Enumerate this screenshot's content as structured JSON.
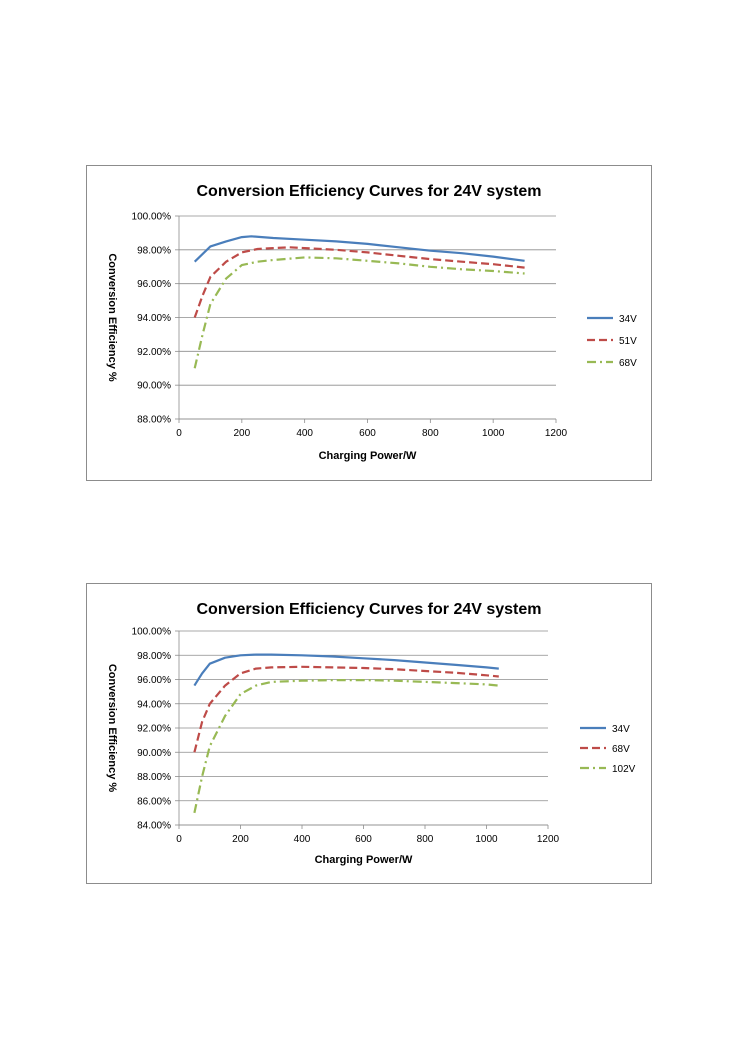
{
  "charts": [
    {
      "type": "line",
      "title": "Conversion Efficiency Curves for 24V system",
      "xlabel": "Charging Power/W",
      "ylabel": "Conversion Efficiency %",
      "xlim": [
        0,
        1200
      ],
      "ylim": [
        88,
        100
      ],
      "x_ticks": [
        "0",
        "200",
        "400",
        "600",
        "800",
        "1000",
        "1200"
      ],
      "y_ticks": [
        "88.00%",
        "90.00%",
        "92.00%",
        "94.00%",
        "96.00%",
        "98.00%",
        "100.00%"
      ],
      "grid": true,
      "legend_position": "right",
      "series": [
        {
          "name": "34V",
          "color": "#4a7ebb",
          "dash": "solid",
          "points": [
            [
              50,
              97.3
            ],
            [
              100,
              98.2
            ],
            [
              150,
              98.5
            ],
            [
              200,
              98.75
            ],
            [
              230,
              98.8
            ],
            [
              300,
              98.7
            ],
            [
              400,
              98.6
            ],
            [
              500,
              98.5
            ],
            [
              600,
              98.35
            ],
            [
              700,
              98.15
            ],
            [
              800,
              97.95
            ],
            [
              900,
              97.8
            ],
            [
              1000,
              97.6
            ],
            [
              1100,
              97.35
            ]
          ]
        },
        {
          "name": "51V",
          "color": "#be4b48",
          "dash": "dashed",
          "points": [
            [
              50,
              94.0
            ],
            [
              75,
              95.3
            ],
            [
              100,
              96.4
            ],
            [
              150,
              97.3
            ],
            [
              200,
              97.85
            ],
            [
              250,
              98.05
            ],
            [
              300,
              98.1
            ],
            [
              350,
              98.15
            ],
            [
              400,
              98.1
            ],
            [
              500,
              98.0
            ],
            [
              600,
              97.85
            ],
            [
              700,
              97.65
            ],
            [
              800,
              97.45
            ],
            [
              900,
              97.3
            ],
            [
              1000,
              97.15
            ],
            [
              1100,
              96.95
            ]
          ]
        },
        {
          "name": "68V",
          "color": "#98b954",
          "dash": "dashdot",
          "points": [
            [
              50,
              91.0
            ],
            [
              75,
              93.0
            ],
            [
              100,
              94.8
            ],
            [
              150,
              96.3
            ],
            [
              200,
              97.1
            ],
            [
              250,
              97.3
            ],
            [
              300,
              97.4
            ],
            [
              400,
              97.55
            ],
            [
              500,
              97.5
            ],
            [
              600,
              97.35
            ],
            [
              700,
              97.2
            ],
            [
              800,
              97.0
            ],
            [
              900,
              96.85
            ],
            [
              1000,
              96.75
            ],
            [
              1100,
              96.6
            ]
          ]
        }
      ]
    },
    {
      "type": "line",
      "title": "Conversion Efficiency Curves for 24V system",
      "xlabel": "Charging Power/W",
      "ylabel": "Conversion Efficiency %",
      "xlim": [
        0,
        1200
      ],
      "ylim": [
        84,
        100
      ],
      "x_ticks": [
        "0",
        "200",
        "400",
        "600",
        "800",
        "1000",
        "1200"
      ],
      "y_ticks": [
        "84.00%",
        "86.00%",
        "88.00%",
        "90.00%",
        "92.00%",
        "94.00%",
        "96.00%",
        "98.00%",
        "100.00%"
      ],
      "grid": true,
      "legend_position": "right",
      "series": [
        {
          "name": "34V",
          "color": "#4a7ebb",
          "dash": "solid",
          "points": [
            [
              50,
              95.5
            ],
            [
              75,
              96.5
            ],
            [
              100,
              97.3
            ],
            [
              150,
              97.8
            ],
            [
              200,
              98.0
            ],
            [
              250,
              98.05
            ],
            [
              300,
              98.05
            ],
            [
              400,
              98.0
            ],
            [
              500,
              97.9
            ],
            [
              600,
              97.75
            ],
            [
              700,
              97.6
            ],
            [
              800,
              97.4
            ],
            [
              900,
              97.2
            ],
            [
              1000,
              97.0
            ],
            [
              1040,
              96.9
            ]
          ]
        },
        {
          "name": "68V",
          "color": "#be4b48",
          "dash": "dashed",
          "points": [
            [
              50,
              90.0
            ],
            [
              75,
              92.5
            ],
            [
              100,
              94.0
            ],
            [
              150,
              95.5
            ],
            [
              200,
              96.5
            ],
            [
              250,
              96.9
            ],
            [
              300,
              97.0
            ],
            [
              400,
              97.05
            ],
            [
              500,
              97.0
            ],
            [
              600,
              96.95
            ],
            [
              700,
              96.85
            ],
            [
              800,
              96.7
            ],
            [
              900,
              96.55
            ],
            [
              1000,
              96.35
            ],
            [
              1040,
              96.25
            ]
          ]
        },
        {
          "name": "102V",
          "color": "#98b954",
          "dash": "dashdot",
          "points": [
            [
              50,
              85.0
            ],
            [
              75,
              88.0
            ],
            [
              100,
              90.5
            ],
            [
              150,
              93.0
            ],
            [
              200,
              94.8
            ],
            [
              250,
              95.5
            ],
            [
              300,
              95.8
            ],
            [
              400,
              95.9
            ],
            [
              500,
              95.95
            ],
            [
              600,
              95.95
            ],
            [
              700,
              95.9
            ],
            [
              800,
              95.8
            ],
            [
              900,
              95.7
            ],
            [
              1000,
              95.6
            ],
            [
              1040,
              95.5
            ]
          ]
        }
      ]
    }
  ]
}
